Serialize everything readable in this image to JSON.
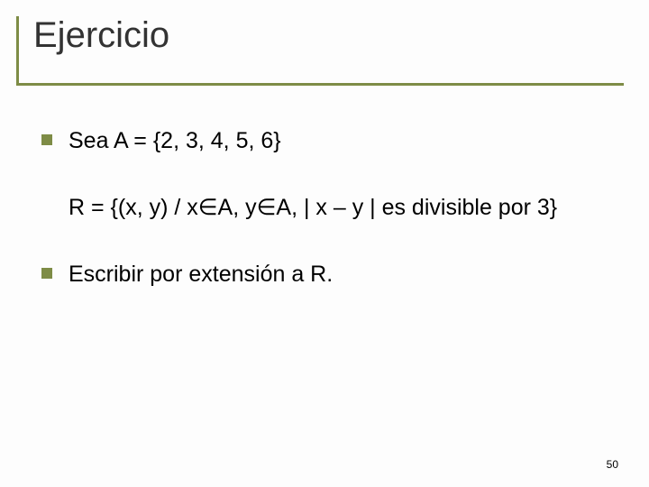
{
  "colors": {
    "accent": "#7e8c46",
    "bullet": "#7e8c46",
    "title_text": "#333333",
    "body_text": "#000000",
    "background": "#fdfdfd"
  },
  "typography": {
    "title_fontsize": 40,
    "body_fontsize": 25,
    "pagenum_fontsize": 12,
    "font_family": "Arial"
  },
  "title": "Ejercicio",
  "items": [
    {
      "kind": "bullet",
      "text": "Sea A = {2, 3, 4, 5, 6}"
    },
    {
      "kind": "plain",
      "text": "R = {(x, y) / x∈A, y∈A, | x – y | es divisible por 3}"
    },
    {
      "kind": "bullet",
      "text": "Escribir por extensión a R."
    }
  ],
  "page_number": "50"
}
